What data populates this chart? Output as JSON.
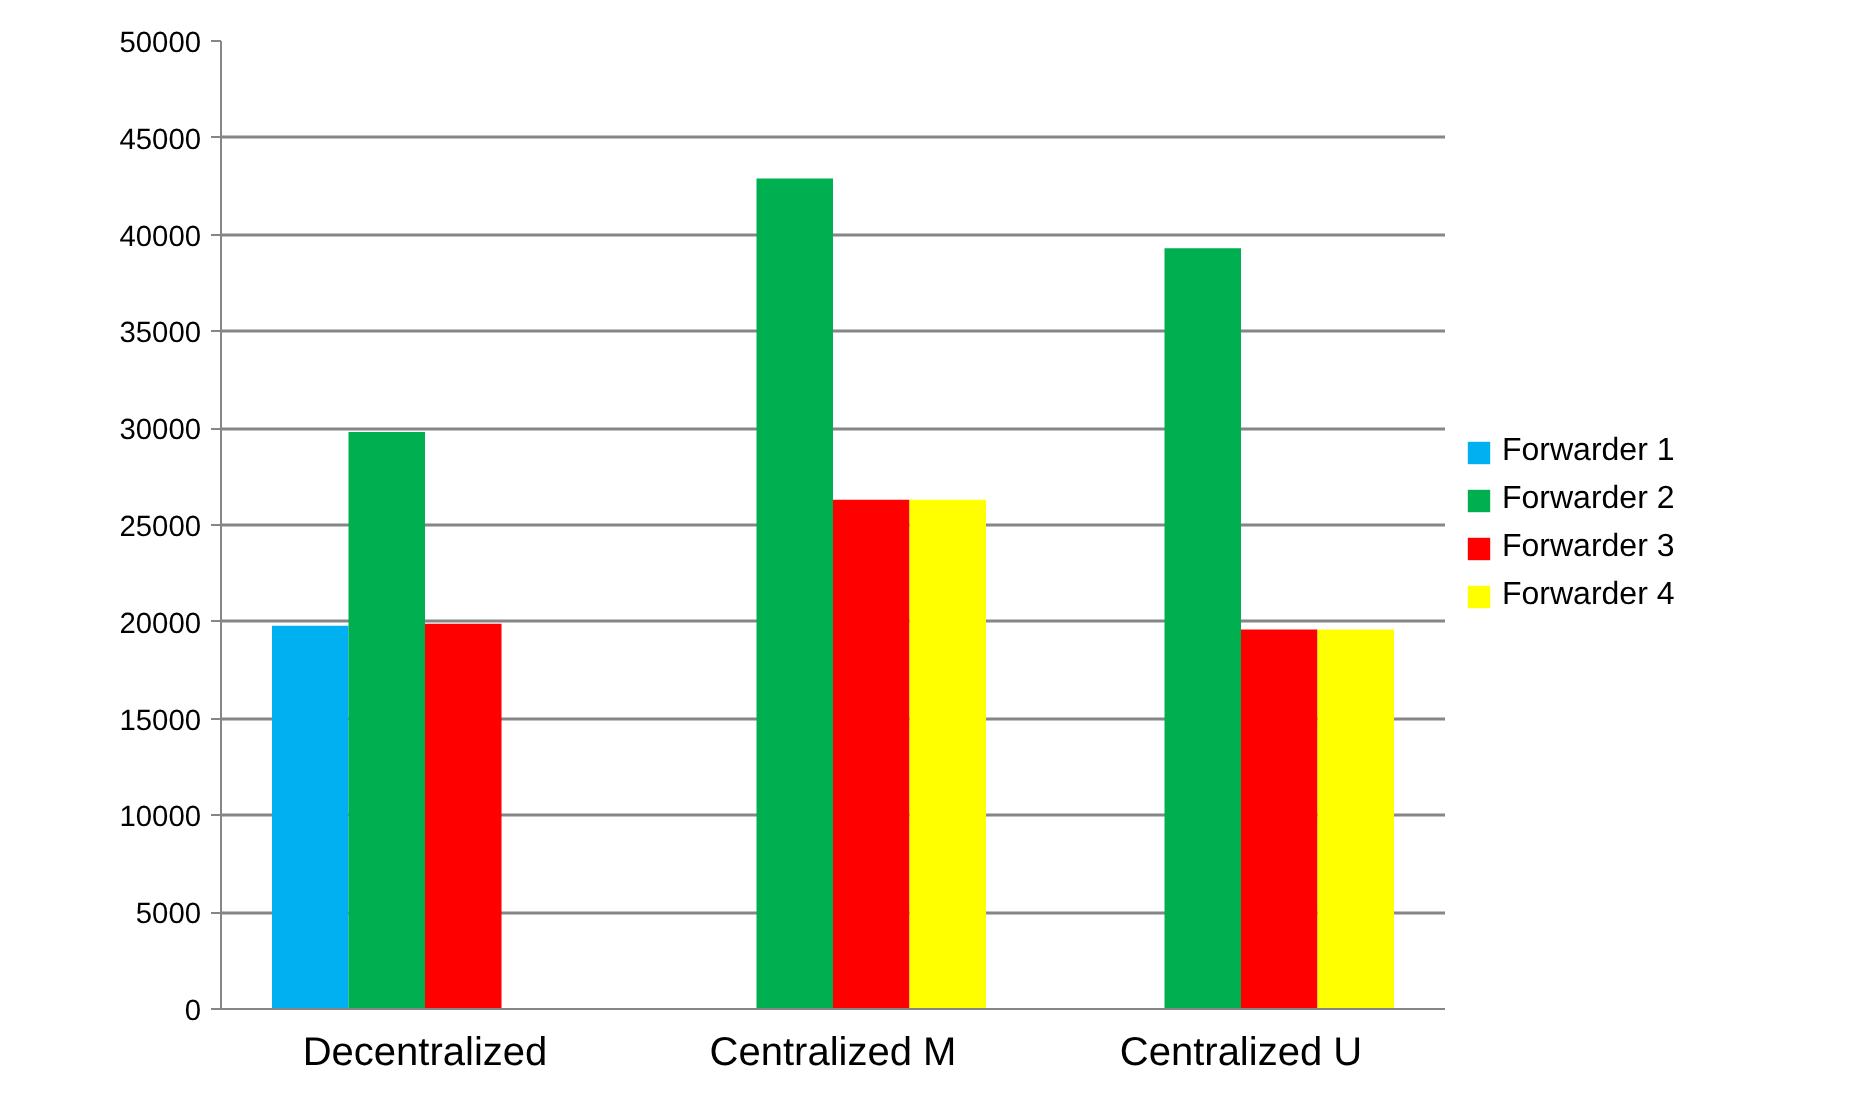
{
  "chart_data": {
    "type": "bar",
    "categories": [
      "Decentralized",
      "Centralized M",
      "Centralized U"
    ],
    "series": [
      {
        "name": "Forwarder 1",
        "color": "#00b0f0",
        "values": [
          19800,
          null,
          null
        ]
      },
      {
        "name": "Forwarder 2",
        "color": "#00b050",
        "values": [
          29800,
          42900,
          39300
        ]
      },
      {
        "name": "Forwarder 3",
        "color": "#ff0000",
        "values": [
          19900,
          26300,
          19600
        ]
      },
      {
        "name": "Forwarder 4",
        "color": "#ffff00",
        "values": [
          null,
          26300,
          19600
        ]
      }
    ],
    "ylim": [
      0,
      50000
    ],
    "yticks": [
      0,
      5000,
      10000,
      15000,
      20000,
      25000,
      30000,
      35000,
      40000,
      45000,
      50000
    ],
    "grid": "y",
    "legend": "right"
  }
}
